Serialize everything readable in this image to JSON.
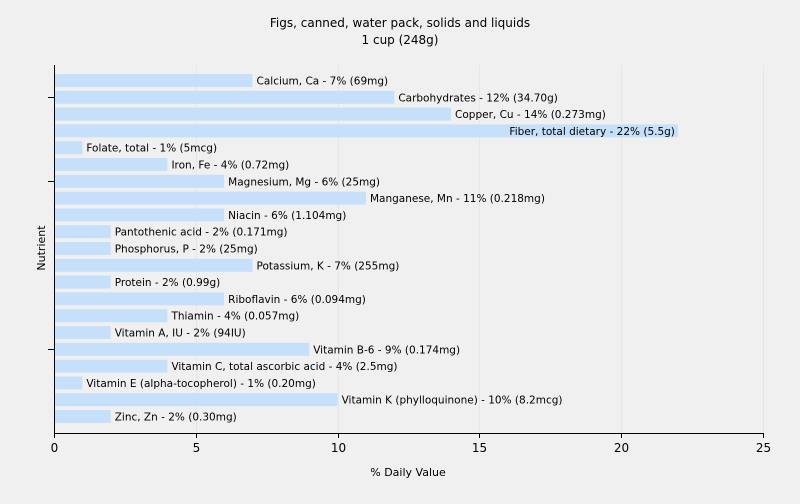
{
  "chart_data": {
    "type": "bar",
    "orientation": "horizontal",
    "title": "Figs, canned, water pack, solids and liquids",
    "subtitle": "1 cup (248g)",
    "xlabel": "% Daily Value",
    "ylabel": "Nutrient",
    "xlim": [
      0,
      25
    ],
    "xticks": [
      0,
      5,
      10,
      15,
      20,
      25
    ],
    "grid": "vertical",
    "bar_color": "#c6e0fb",
    "gridline_color": "#e6e6e6",
    "background_color": "#f0f0f0",
    "categories": [
      "Calcium, Ca",
      "Carbohydrates",
      "Copper, Cu",
      "Fiber, total dietary",
      "Folate, total",
      "Iron, Fe",
      "Magnesium, Mg",
      "Manganese, Mn",
      "Niacin",
      "Pantothenic acid",
      "Phosphorus, P",
      "Potassium, K",
      "Protein",
      "Riboflavin",
      "Thiamin",
      "Vitamin A, IU",
      "Vitamin B-6",
      "Vitamin C, total ascorbic acid",
      "Vitamin E (alpha-tocopherol)",
      "Vitamin K (phylloquinone)",
      "Zinc, Zn"
    ],
    "values": [
      7,
      12,
      14,
      22,
      1,
      4,
      6,
      11,
      6,
      2,
      2,
      7,
      2,
      6,
      4,
      2,
      9,
      4,
      1,
      10,
      2
    ],
    "labels": [
      "Calcium, Ca - 7% (69mg)",
      "Carbohydrates - 12% (34.70g)",
      "Copper, Cu - 14% (0.273mg)",
      "Fiber, total dietary - 22% (5.5g)",
      "Folate, total - 1% (5mcg)",
      "Iron, Fe - 4% (0.72mg)",
      "Magnesium, Mg - 6% (25mg)",
      "Manganese, Mn - 11% (0.218mg)",
      "Niacin - 6% (1.104mg)",
      "Pantothenic acid - 2% (0.171mg)",
      "Phosphorus, P - 2% (25mg)",
      "Potassium, K - 7% (255mg)",
      "Protein - 2% (0.99g)",
      "Riboflavin - 6% (0.094mg)",
      "Thiamin - 4% (0.057mg)",
      "Vitamin A, IU - 2% (94IU)",
      "Vitamin B-6 - 9% (0.174mg)",
      "Vitamin C, total ascorbic acid - 4% (2.5mg)",
      "Vitamin E (alpha-tocopherol) - 1% (0.20mg)",
      "Vitamin K (phylloquinone) - 10% (8.2mcg)",
      "Zinc, Zn - 2% (0.30mg)"
    ]
  }
}
